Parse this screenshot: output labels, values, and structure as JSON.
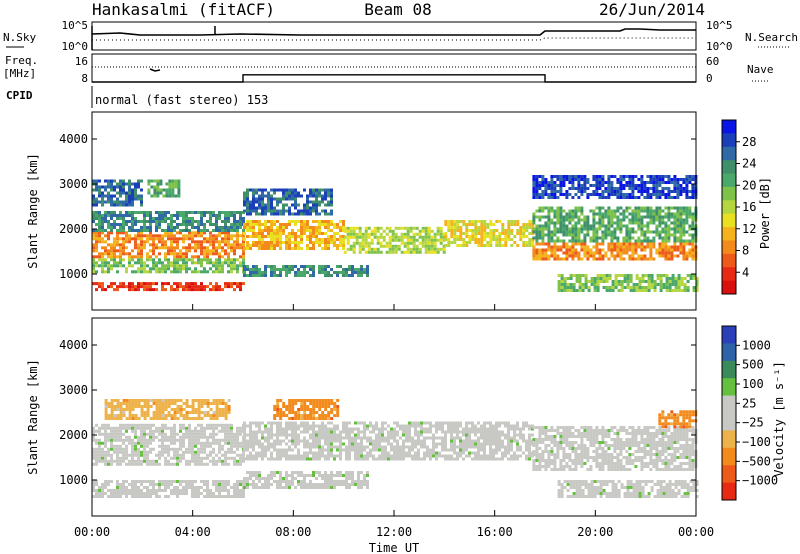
{
  "header": {
    "station": "Hankasalmi (fitACF)",
    "beam": "Beam 08",
    "date": "26/Jun/2014"
  },
  "noise_panel": {
    "left_label": "N.Sky",
    "right_label": "N.Search",
    "left_ticks": [
      "10^5",
      "10^0"
    ],
    "right_ticks": [
      "10^5",
      "10^0"
    ]
  },
  "freq_panel": {
    "left_label_1": "Freq.",
    "left_label_2": "[MHz]",
    "right_label": "Nave",
    "left_ticks": [
      "16",
      "8"
    ],
    "right_ticks": [
      "60",
      "0"
    ],
    "freq_mhz_segments": [
      {
        "start_h": 0,
        "end_h": 6,
        "value": 8
      },
      {
        "start_h": 6,
        "end_h": 18,
        "value": 10.5
      },
      {
        "start_h": 18,
        "end_h": 24,
        "value": 8
      }
    ]
  },
  "cpid_panel": {
    "label": "CPID",
    "mode_text": "normal (fast stereo) 153"
  },
  "chart_data": [
    {
      "type": "heatmap",
      "name": "power",
      "ylabel": "Slant Range [km]",
      "yticks": [
        "4000",
        "3000",
        "2000",
        "1000"
      ],
      "ylim": [
        200,
        4600
      ],
      "xlim": [
        0,
        24
      ],
      "colorbar_label": "Power [dB]",
      "colorbar_ticks": [
        "28",
        "24",
        "20",
        "16",
        "12",
        "8",
        "4"
      ],
      "colorbar_colors": [
        "#0a14e6",
        "#1a3fb8",
        "#2f6aa6",
        "#3f8f6a",
        "#4aa86a",
        "#7fc24a",
        "#b5d640",
        "#e8e020",
        "#f4b21c",
        "#f28a1c",
        "#ee5a1a",
        "#e62a14",
        "#d9100e"
      ],
      "bands": [
        {
          "t0": 0.0,
          "t1": 6.0,
          "r0": 620,
          "r1": 820,
          "level": 11
        },
        {
          "t0": 0.0,
          "t1": 6.0,
          "r0": 1400,
          "r1": 1950,
          "level": 9
        },
        {
          "t0": 0.0,
          "t1": 6.0,
          "r0": 1050,
          "r1": 1350,
          "level": 5
        },
        {
          "t0": 0.0,
          "t1": 6.0,
          "r0": 1950,
          "r1": 2400,
          "level": 3
        },
        {
          "t0": 0.0,
          "t1": 2.0,
          "r0": 2500,
          "r1": 3100,
          "level": 2
        },
        {
          "t0": 2.2,
          "t1": 3.4,
          "r0": 2700,
          "r1": 3100,
          "level": 4
        },
        {
          "t0": 6.0,
          "t1": 10.0,
          "r0": 1550,
          "r1": 2200,
          "level": 8
        },
        {
          "t0": 6.0,
          "t1": 11.0,
          "r0": 950,
          "r1": 1200,
          "level": 3
        },
        {
          "t0": 6.0,
          "t1": 9.5,
          "r0": 2300,
          "r1": 2900,
          "level": 2
        },
        {
          "t0": 10.0,
          "t1": 14.0,
          "r0": 1500,
          "r1": 2050,
          "level": 6
        },
        {
          "t0": 14.0,
          "t1": 17.5,
          "r0": 1650,
          "r1": 2200,
          "level": 7
        },
        {
          "t0": 17.5,
          "t1": 24.0,
          "r0": 1300,
          "r1": 1700,
          "level": 9
        },
        {
          "t0": 17.5,
          "t1": 24.0,
          "r0": 1750,
          "r1": 2500,
          "level": 4
        },
        {
          "t0": 18.5,
          "t1": 24.0,
          "r0": 650,
          "r1": 1000,
          "level": 5
        },
        {
          "t0": 17.5,
          "t1": 24.0,
          "r0": 2700,
          "r1": 3200,
          "level": 1
        }
      ]
    },
    {
      "type": "heatmap",
      "name": "velocity",
      "ylabel": "Slant Range [km]",
      "yticks": [
        "4000",
        "3000",
        "2000",
        "1000"
      ],
      "ylim": [
        200,
        4600
      ],
      "xlim": [
        0,
        24
      ],
      "colorbar_label": "Velocity [m s⁻¹]",
      "colorbar_ticks": [
        "1000",
        "500",
        "100",
        "25",
        "−25",
        "−100",
        "−500",
        "−1000"
      ],
      "colorbar_colors": [
        "#2a3fb8",
        "#2f63a8",
        "#3a8a5a",
        "#66c040",
        "#c8c8c4",
        "#c8c8c4",
        "#eeb24a",
        "#f28a1c",
        "#ee5a1a",
        "#e62a14"
      ],
      "bands": [
        {
          "t0": 0.0,
          "t1": 6.0,
          "r0": 1350,
          "r1": 2250,
          "level": 4
        },
        {
          "t0": 0.0,
          "t1": 6.0,
          "r0": 650,
          "r1": 1000,
          "level": 4
        },
        {
          "t0": 0.5,
          "t1": 5.5,
          "r0": 2350,
          "r1": 2800,
          "level": 6
        },
        {
          "t0": 6.0,
          "t1": 17.5,
          "r0": 1450,
          "r1": 2300,
          "level": 4
        },
        {
          "t0": 6.0,
          "t1": 11.0,
          "r0": 850,
          "r1": 1200,
          "level": 4
        },
        {
          "t0": 7.2,
          "t1": 9.8,
          "r0": 2350,
          "r1": 2800,
          "level": 7
        },
        {
          "t0": 17.5,
          "t1": 24.0,
          "r0": 1250,
          "r1": 2200,
          "level": 4
        },
        {
          "t0": 18.5,
          "t1": 24.0,
          "r0": 650,
          "r1": 1000,
          "level": 4
        },
        {
          "t0": 22.5,
          "t1": 24.0,
          "r0": 2200,
          "r1": 2550,
          "level": 7
        }
      ]
    }
  ],
  "time_axis": {
    "ticks": [
      "00:00",
      "04:00",
      "08:00",
      "12:00",
      "16:00",
      "20:00",
      "00:00"
    ],
    "label": "Time UT"
  }
}
